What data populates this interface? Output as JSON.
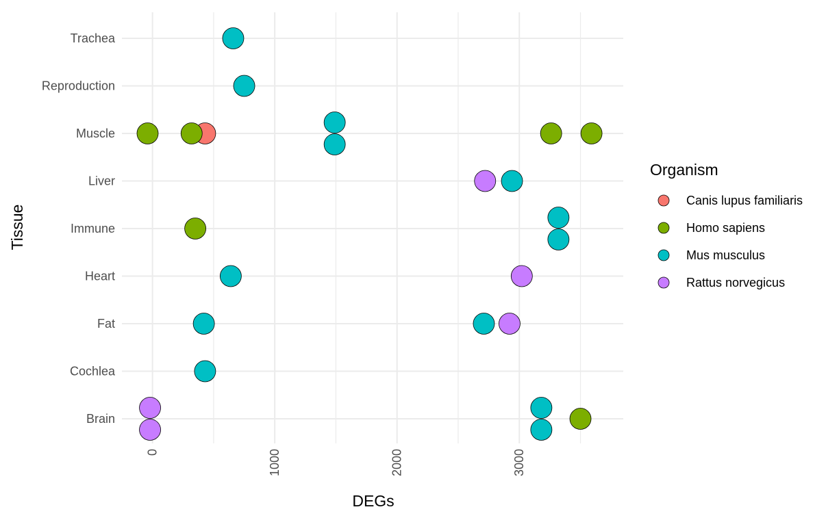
{
  "chart_data": {
    "type": "scatter",
    "xlabel": "DEGs",
    "ylabel": "Tissue",
    "xlim": [
      -250,
      3850
    ],
    "x_ticks": [
      0,
      1000,
      2000,
      3000
    ],
    "categories": [
      "Brain",
      "Cochlea",
      "Fat",
      "Heart",
      "Immune",
      "Liver",
      "Muscle",
      "Reproduction",
      "Trachea"
    ],
    "grid": true,
    "legend": {
      "title": "Organism",
      "placement": "right"
    },
    "series": [
      {
        "name": "Canis lupus familiaris",
        "color": "#F8766D",
        "points": [
          {
            "x": 430,
            "y": "Muscle",
            "offset": 0
          }
        ]
      },
      {
        "name": "Homo sapiens",
        "color": "#7CAE00",
        "points": [
          {
            "x": -40,
            "y": "Muscle",
            "offset": 0
          },
          {
            "x": 320,
            "y": "Muscle",
            "offset": 0
          },
          {
            "x": 3260,
            "y": "Muscle",
            "offset": 0
          },
          {
            "x": 3590,
            "y": "Muscle",
            "offset": 0
          },
          {
            "x": 350,
            "y": "Immune",
            "offset": 0
          },
          {
            "x": 3500,
            "y": "Brain",
            "offset": 0
          }
        ]
      },
      {
        "name": "Mus musculus",
        "color": "#00BFC4",
        "points": [
          {
            "x": 660,
            "y": "Trachea",
            "offset": 0
          },
          {
            "x": 750,
            "y": "Reproduction",
            "offset": 0
          },
          {
            "x": 1490,
            "y": "Muscle",
            "offset": 0.23
          },
          {
            "x": 1490,
            "y": "Muscle",
            "offset": -0.23
          },
          {
            "x": 2940,
            "y": "Liver",
            "offset": 0
          },
          {
            "x": 3320,
            "y": "Immune",
            "offset": 0.23
          },
          {
            "x": 3320,
            "y": "Immune",
            "offset": -0.23
          },
          {
            "x": 640,
            "y": "Heart",
            "offset": 0
          },
          {
            "x": 420,
            "y": "Fat",
            "offset": 0
          },
          {
            "x": 2710,
            "y": "Fat",
            "offset": 0
          },
          {
            "x": 430,
            "y": "Cochlea",
            "offset": 0
          },
          {
            "x": 3180,
            "y": "Brain",
            "offset": 0.23
          },
          {
            "x": 3180,
            "y": "Brain",
            "offset": -0.23
          }
        ]
      },
      {
        "name": "Rattus norvegicus",
        "color": "#C77CFF",
        "points": [
          {
            "x": 2720,
            "y": "Liver",
            "offset": 0
          },
          {
            "x": 3020,
            "y": "Heart",
            "offset": 0
          },
          {
            "x": 2920,
            "y": "Fat",
            "offset": 0
          },
          {
            "x": -20,
            "y": "Brain",
            "offset": 0.23
          },
          {
            "x": -20,
            "y": "Brain",
            "offset": -0.23
          }
        ]
      }
    ]
  }
}
